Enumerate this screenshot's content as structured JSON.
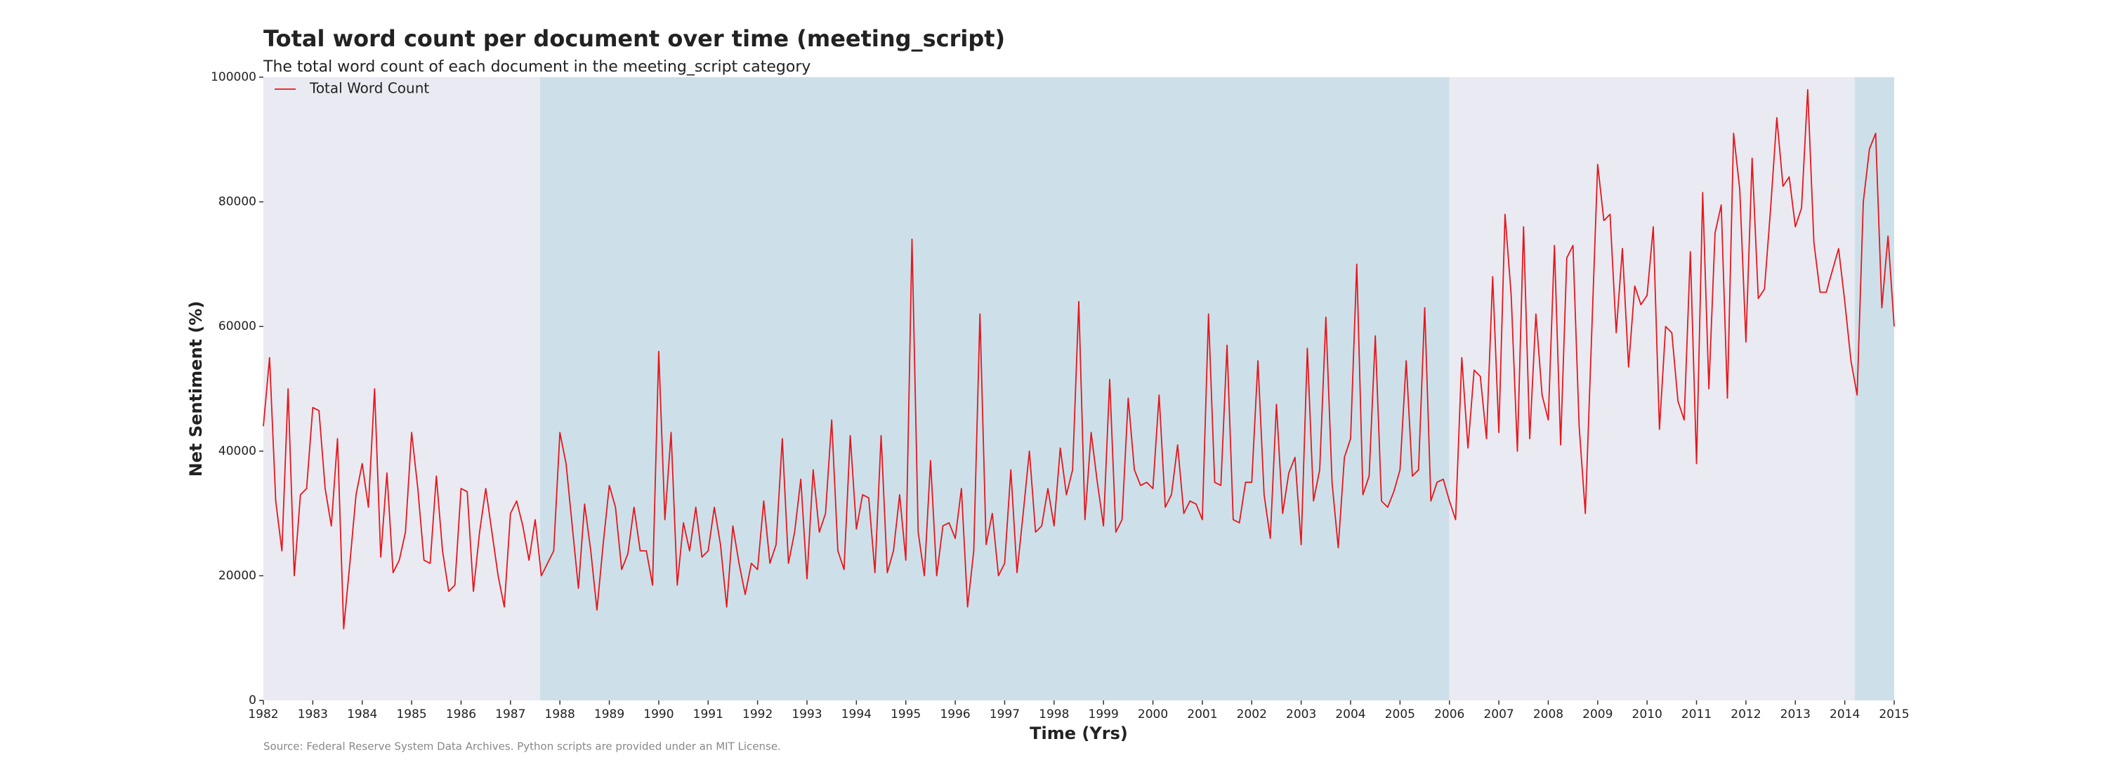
{
  "chart_data": {
    "type": "line",
    "title": "Total word count per document over time (meeting_script)",
    "subtitle": "The total word count of each document in the meeting_script category",
    "source": "Source: Federal Reserve System Data Archives. Python scripts are provided under an MIT License.",
    "xlabel": "Time (Yrs)",
    "ylabel": "Net Sentiment (%)",
    "xlim": [
      1982,
      2015
    ],
    "ylim": [
      0,
      100000
    ],
    "xticks": [
      1982,
      1983,
      1984,
      1985,
      1986,
      1987,
      1988,
      1989,
      1990,
      1991,
      1992,
      1993,
      1994,
      1995,
      1996,
      1997,
      1998,
      1999,
      2000,
      2001,
      2002,
      2003,
      2004,
      2005,
      2006,
      2007,
      2008,
      2009,
      2010,
      2011,
      2012,
      2013,
      2014,
      2015
    ],
    "yticks": [
      0,
      20000,
      40000,
      60000,
      80000,
      100000
    ],
    "grid": false,
    "legend": "upper left",
    "spans": [
      {
        "start": 1982,
        "end": 1987.6,
        "color": "#eaeaf2"
      },
      {
        "start": 1987.6,
        "end": 2006.0,
        "color": "#cde0ea"
      },
      {
        "start": 2006.0,
        "end": 2014.2,
        "color": "#eaeaf2"
      },
      {
        "start": 2014.2,
        "end": 2015,
        "color": "#cde0ea"
      }
    ],
    "x": [
      1982,
      1982.125,
      1982.25,
      1982.375,
      1982.5,
      1982.625,
      1982.75,
      1982.875,
      1983,
      1983.125,
      1983.25,
      1983.375,
      1983.5,
      1983.625,
      1983.75,
      1983.875,
      1984,
      1984.125,
      1984.25,
      1984.375,
      1984.5,
      1984.625,
      1984.75,
      1984.875,
      1985,
      1985.125,
      1985.25,
      1985.375,
      1985.5,
      1985.625,
      1985.75,
      1985.875,
      1986,
      1986.125,
      1986.25,
      1986.375,
      1986.5,
      1986.625,
      1986.75,
      1986.875,
      1987,
      1987.125,
      1987.25,
      1987.375,
      1987.5,
      1987.625,
      1987.75,
      1987.875,
      1988,
      1988.125,
      1988.25,
      1988.375,
      1988.5,
      1988.625,
      1988.75,
      1988.875,
      1989,
      1989.125,
      1989.25,
      1989.375,
      1989.5,
      1989.625,
      1989.75,
      1989.875,
      1990,
      1990.125,
      1990.25,
      1990.375,
      1990.5,
      1990.625,
      1990.75,
      1990.875,
      1991,
      1991.125,
      1991.25,
      1991.375,
      1991.5,
      1991.625,
      1991.75,
      1991.875,
      1992,
      1992.125,
      1992.25,
      1992.375,
      1992.5,
      1992.625,
      1992.75,
      1992.875,
      1993,
      1993.125,
      1993.25,
      1993.375,
      1993.5,
      1993.625,
      1993.75,
      1993.875,
      1994,
      1994.125,
      1994.25,
      1994.375,
      1994.5,
      1994.625,
      1994.75,
      1994.875,
      1995,
      1995.125,
      1995.25,
      1995.375,
      1995.5,
      1995.625,
      1995.75,
      1995.875,
      1996,
      1996.125,
      1996.25,
      1996.375,
      1996.5,
      1996.625,
      1996.75,
      1996.875,
      1997,
      1997.125,
      1997.25,
      1997.375,
      1997.5,
      1997.625,
      1997.75,
      1997.875,
      1998,
      1998.125,
      1998.25,
      1998.375,
      1998.5,
      1998.625,
      1998.75,
      1998.875,
      1999,
      1999.125,
      1999.25,
      1999.375,
      1999.5,
      1999.625,
      1999.75,
      1999.875,
      2000,
      2000.125,
      2000.25,
      2000.375,
      2000.5,
      2000.625,
      2000.75,
      2000.875,
      2001,
      2001.125,
      2001.25,
      2001.375,
      2001.5,
      2001.625,
      2001.75,
      2001.875,
      2002,
      2002.125,
      2002.25,
      2002.375,
      2002.5,
      2002.625,
      2002.75,
      2002.875,
      2003,
      2003.125,
      2003.25,
      2003.375,
      2003.5,
      2003.625,
      2003.75,
      2003.875,
      2004,
      2004.125,
      2004.25,
      2004.375,
      2004.5,
      2004.625,
      2004.75,
      2004.875,
      2005,
      2005.125,
      2005.25,
      2005.375,
      2005.5,
      2005.625,
      2005.75,
      2005.875,
      2006,
      2006.125,
      2006.25,
      2006.375,
      2006.5,
      2006.625,
      2006.75,
      2006.875,
      2007,
      2007.125,
      2007.25,
      2007.375,
      2007.5,
      2007.625,
      2007.75,
      2007.875,
      2008,
      2008.125,
      2008.25,
      2008.375,
      2008.5,
      2008.625,
      2008.75,
      2008.875,
      2009,
      2009.125,
      2009.25,
      2009.375,
      2009.5,
      2009.625,
      2009.75,
      2009.875,
      2010,
      2010.125,
      2010.25,
      2010.375,
      2010.5,
      2010.625,
      2010.75,
      2010.875,
      2011,
      2011.125,
      2011.25,
      2011.375,
      2011.5,
      2011.625,
      2011.75,
      2011.875,
      2012,
      2012.125,
      2012.25,
      2012.375,
      2012.5,
      2012.625,
      2012.75,
      2012.875,
      2013,
      2013.125,
      2013.25,
      2013.375,
      2013.5,
      2013.625,
      2013.75,
      2013.875,
      2014,
      2014.125,
      2014.25,
      2014.375,
      2014.5,
      2014.625,
      2014.75,
      2014.875,
      2015
    ],
    "series": [
      {
        "name": "Total Word Count",
        "color": "#e8161b",
        "values": [
          44000,
          55000,
          32000,
          24000,
          50000,
          20000,
          33000,
          34000,
          47000,
          46500,
          34000,
          28000,
          42000,
          11500,
          22000,
          33000,
          38000,
          31000,
          50000,
          23000,
          36500,
          20500,
          22500,
          27000,
          43000,
          34000,
          22500,
          22000,
          36000,
          24000,
          17500,
          18500,
          34000,
          33500,
          17500,
          27000,
          34000,
          27000,
          20000,
          15000,
          30000,
          32000,
          28000,
          22500,
          29000,
          20000,
          22000,
          24000,
          43000,
          38000,
          28000,
          18000,
          31500,
          24000,
          14500,
          25000,
          34500,
          31000,
          21000,
          23500,
          31000,
          24000,
          24000,
          18500,
          56000,
          29000,
          43000,
          18500,
          28500,
          24000,
          31000,
          23000,
          24000,
          31000,
          25000,
          15000,
          28000,
          22000,
          17000,
          22000,
          21000,
          32000,
          22000,
          25000,
          42000,
          22000,
          27000,
          35500,
          19500,
          37000,
          27000,
          30000,
          45000,
          24000,
          21000,
          42500,
          27500,
          33000,
          32500,
          20500,
          42500,
          20500,
          24000,
          33000,
          22500,
          74000,
          27000,
          20000,
          38500,
          20000,
          28000,
          28500,
          26000,
          34000,
          15000,
          24000,
          62000,
          25000,
          30000,
          20000,
          22000,
          37000,
          20500,
          30000,
          40000,
          27000,
          28000,
          34000,
          28000,
          40500,
          33000,
          37000,
          64000,
          29000,
          43000,
          35000,
          28000,
          51500,
          27000,
          29000,
          48500,
          37000,
          34500,
          35000,
          34000,
          49000,
          31000,
          33000,
          41000,
          30000,
          32000,
          31500,
          29000,
          62000,
          35000,
          34500,
          57000,
          29000,
          28500,
          35000,
          35000,
          54500,
          33000,
          26000,
          47500,
          30000,
          36500,
          39000,
          25000,
          56500,
          32000,
          37000,
          61500,
          35000,
          24500,
          39000,
          42000,
          70000,
          33000,
          36000,
          58500,
          32000,
          31000,
          33500,
          37000,
          54500,
          36000,
          37000,
          63000,
          32000,
          35000,
          35500,
          32000,
          29000,
          55000,
          40500,
          53000,
          52000,
          42000,
          68000,
          43000,
          78000,
          65000,
          40000,
          76000,
          42000,
          62000,
          49000,
          45000,
          73000,
          41000,
          71000,
          73000,
          44000,
          30000,
          58000,
          86000,
          77000,
          78000,
          59000,
          72500,
          53500,
          66500,
          63500,
          65000,
          76000,
          43500,
          60000,
          59000,
          48000,
          45000,
          72000,
          38000,
          81500,
          50000,
          75000,
          79500,
          48500,
          91000,
          82000,
          57500,
          87000,
          64500,
          66000,
          79000,
          93500,
          82500,
          84000,
          76000,
          79000,
          98000,
          73500,
          65500,
          65500,
          69000,
          72500,
          64000,
          54500,
          49000,
          80000,
          88500,
          91000,
          63000,
          74500,
          60000
        ]
      }
    ]
  }
}
